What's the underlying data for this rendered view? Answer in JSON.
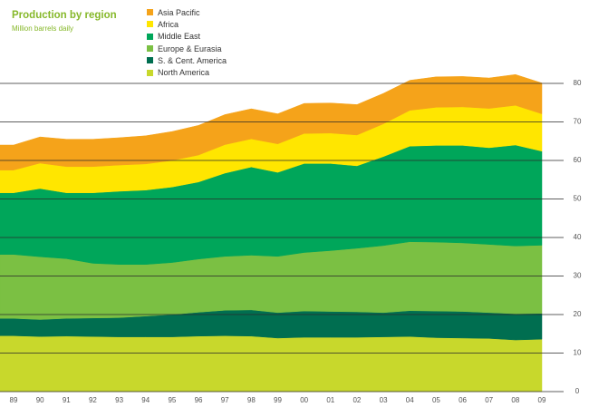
{
  "chart_data": {
    "type": "area",
    "stacked": true,
    "title": "Production by region",
    "subtitle": "Million barrels daily",
    "legend_position": "top-left",
    "grid": true,
    "x": [
      "89",
      "90",
      "91",
      "92",
      "93",
      "94",
      "95",
      "96",
      "97",
      "98",
      "99",
      "00",
      "01",
      "02",
      "03",
      "04",
      "05",
      "06",
      "07",
      "08",
      "09"
    ],
    "ylim": [
      0,
      80
    ],
    "yticks": [
      0,
      10,
      20,
      30,
      40,
      50,
      60,
      70,
      80
    ],
    "series": [
      {
        "name": "North America",
        "color": "#c8d82c",
        "values": [
          14.5,
          14.3,
          14.4,
          14.3,
          14.2,
          14.2,
          14.2,
          14.4,
          14.5,
          14.4,
          13.9,
          14.1,
          14.1,
          14.1,
          14.2,
          14.3,
          14.0,
          13.9,
          13.8,
          13.4,
          13.6
        ]
      },
      {
        "name": "S. & Cent. America",
        "color": "#006e50",
        "values": [
          4.5,
          4.4,
          4.6,
          4.8,
          5.0,
          5.4,
          5.8,
          6.2,
          6.6,
          6.8,
          6.6,
          6.8,
          6.7,
          6.6,
          6.3,
          6.7,
          6.9,
          6.9,
          6.7,
          6.8,
          6.7
        ]
      },
      {
        "name": "Europe & Eurasia",
        "color": "#7bc043",
        "values": [
          16.6,
          16.3,
          15.5,
          14.2,
          13.8,
          13.4,
          13.5,
          13.8,
          14.0,
          14.2,
          14.6,
          15.2,
          15.8,
          16.5,
          17.4,
          17.9,
          17.9,
          17.8,
          17.7,
          17.6,
          17.7
        ]
      },
      {
        "name": "Middle East",
        "color": "#00a65a",
        "values": [
          16.0,
          17.7,
          17.1,
          18.3,
          19.0,
          19.3,
          19.6,
          20.0,
          21.6,
          22.9,
          21.8,
          23.1,
          22.6,
          21.4,
          23.1,
          24.8,
          25.1,
          25.3,
          25.1,
          26.2,
          24.4
        ]
      },
      {
        "name": "Africa",
        "color": "#ffe600",
        "values": [
          5.9,
          6.6,
          6.8,
          6.8,
          6.8,
          6.8,
          6.9,
          7.0,
          7.4,
          7.3,
          7.4,
          7.8,
          7.9,
          8.0,
          8.5,
          9.3,
          9.9,
          10.0,
          10.2,
          10.3,
          9.7
        ]
      },
      {
        "name": "Asia Pacific",
        "color": "#f5a31a",
        "values": [
          6.5,
          6.8,
          7.1,
          7.1,
          7.1,
          7.3,
          7.5,
          7.7,
          7.8,
          7.8,
          7.8,
          7.8,
          7.8,
          7.9,
          7.9,
          7.8,
          7.9,
          7.9,
          7.9,
          8.0,
          8.0
        ]
      }
    ]
  }
}
